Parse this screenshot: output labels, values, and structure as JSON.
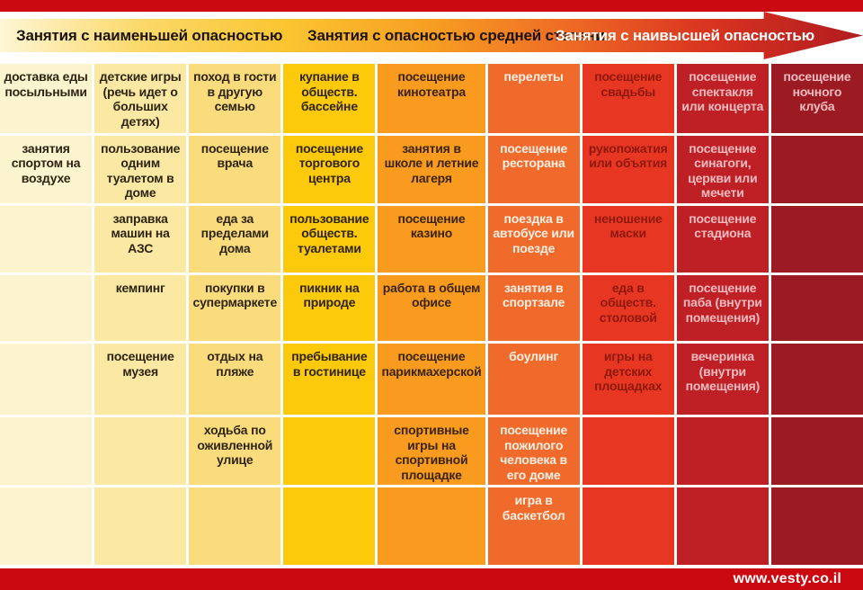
{
  "header": {
    "bands": [
      {
        "label": "Занятия с наименьшей опасностью",
        "text_color": "#1c130a"
      },
      {
        "label": "Занятия с опасностью средней степени",
        "text_color": "#1c130a"
      },
      {
        "label": "Занятия с наивысшей опасностью",
        "text_color": "#ffffff"
      }
    ],
    "arrow_gradient": [
      "#fdf6d5",
      "#fbc531",
      "#f79e22",
      "#ee6a25",
      "#b01c20"
    ]
  },
  "table": {
    "rows": 7,
    "columns": [
      {
        "bg": "#fcf4cf",
        "text_color": "#2e2412",
        "cells": [
          "доставка еды посыльными",
          "занятия спортом на воздухе",
          "",
          "",
          "",
          "",
          ""
        ]
      },
      {
        "bg": "#fae8a3",
        "text_color": "#2e2412",
        "cells": [
          "детские игры (речь идет о больших детях)",
          "пользование одним туалетом в доме",
          "заправка машин на АЗС",
          "кемпинг",
          "посещение музея",
          "",
          ""
        ]
      },
      {
        "bg": "#fbdc7c",
        "text_color": "#2e2412",
        "cells": [
          "поход в гости в другую семью",
          "посещение врача",
          "еда за пределами дома",
          "покупки в супермаркете",
          "отдых на пляже",
          "ходьба по оживленной улице",
          ""
        ]
      },
      {
        "bg": "#fcc90b",
        "text_color": "#2e2412",
        "cells": [
          "купание в обществ. бассейне",
          "посещение торгового центра",
          "пользование обществ. туалетами",
          "пикник на природе",
          "пребывание в гостинице",
          "",
          ""
        ]
      },
      {
        "bg": "#f89b1f",
        "text_color": "#3a2410",
        "cells": [
          "посещение кинотеатра",
          "занятия в школе и летние лагеря",
          "посещение казино",
          "работа в общем офисе",
          "посещение парикмахерской",
          "спортивные игры на спортивной площадке",
          ""
        ]
      },
      {
        "bg": "#f06a2b",
        "text_color": "#fcf0e4",
        "cells": [
          "перелеты",
          "посещение ресторана",
          "поездка в автобусе или поезде",
          "занятия в спортзале",
          "боулинг",
          "посещение пожилого человека в его доме",
          "игра в баскетбол"
        ]
      },
      {
        "bg": "#e73722",
        "text_color": "#8e1911",
        "cells": [
          "посещение свадьбы",
          "рукопожатия или объятия",
          "неношение маски",
          "еда в обществ. столовой",
          "игры на детских площадках",
          "",
          ""
        ]
      },
      {
        "bg": "#be2025",
        "text_color": "#f2bcc0",
        "cells": [
          "посещение спектакля или концерта",
          "посещение синагоги, церкви или мечети",
          "посещение стадиона",
          "посещение паба (внутри помещения)",
          "вечеринка (внутри помещения)",
          "",
          ""
        ]
      },
      {
        "bg": "#9c1b22",
        "text_color": "#f2bcc0",
        "cells": [
          "посещение ночного клуба",
          "",
          "",
          "",
          "",
          "",
          ""
        ]
      }
    ]
  },
  "footer": {
    "url": "www.vesty.co.il",
    "bar_color": "#ca0a10"
  }
}
